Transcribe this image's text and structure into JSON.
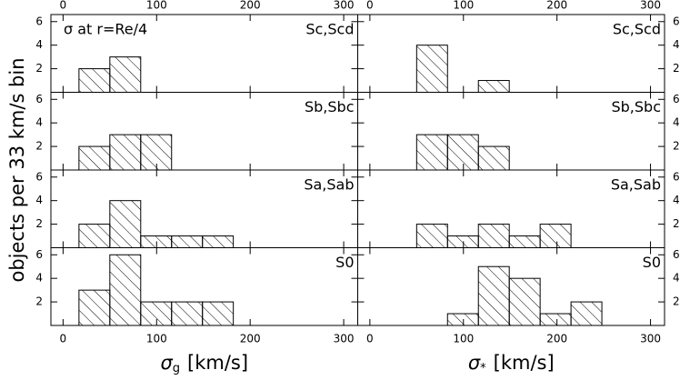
{
  "chart_data": [
    {
      "type": "histogram",
      "annotation": "Sc,Scd",
      "note": "σ at r=Re/4",
      "ylabel": "objects per 33 km/s bin",
      "bins": [
        17,
        50,
        83
      ],
      "values": [
        2,
        3
      ],
      "xlim": [
        -13,
        315
      ],
      "ylim": [
        0,
        6.6
      ],
      "xticks": [
        0,
        100,
        200,
        300
      ],
      "yticks": [
        2,
        4,
        6
      ]
    },
    {
      "type": "histogram",
      "annotation": "Sc,Scd",
      "bins": [
        50,
        83,
        116,
        149
      ],
      "values": [
        4,
        0,
        1
      ],
      "xlim": [
        -13,
        315
      ],
      "ylim": [
        0,
        6.6
      ],
      "xticks": [
        0,
        100,
        200,
        300
      ],
      "yticks": [
        2,
        4,
        6
      ]
    },
    {
      "type": "histogram",
      "annotation": "Sb,Sbc",
      "bins": [
        17,
        50,
        83,
        116
      ],
      "values": [
        2,
        3,
        3
      ],
      "xlim": [
        -13,
        315
      ],
      "ylim": [
        0,
        6.6
      ],
      "xticks": [
        0,
        100,
        200,
        300
      ],
      "yticks": [
        2,
        4,
        6
      ]
    },
    {
      "type": "histogram",
      "annotation": "Sb,Sbc",
      "bins": [
        50,
        83,
        116,
        149
      ],
      "values": [
        3,
        3,
        2
      ],
      "xlim": [
        -13,
        315
      ],
      "ylim": [
        0,
        6.6
      ],
      "xticks": [
        0,
        100,
        200,
        300
      ],
      "yticks": [
        2,
        4,
        6
      ]
    },
    {
      "type": "histogram",
      "annotation": "Sa,Sab",
      "bins": [
        17,
        50,
        83,
        116,
        149,
        182
      ],
      "values": [
        2,
        4,
        1,
        1,
        1
      ],
      "xlim": [
        -13,
        315
      ],
      "ylim": [
        0,
        6.6
      ],
      "xticks": [
        0,
        100,
        200,
        300
      ],
      "yticks": [
        2,
        4,
        6
      ]
    },
    {
      "type": "histogram",
      "annotation": "Sa,Sab",
      "bins": [
        50,
        83,
        116,
        149,
        182,
        215
      ],
      "values": [
        2,
        1,
        2,
        1,
        2
      ],
      "xlim": [
        -13,
        315
      ],
      "ylim": [
        0,
        6.6
      ],
      "xticks": [
        0,
        100,
        200,
        300
      ],
      "yticks": [
        2,
        4,
        6
      ]
    },
    {
      "type": "histogram",
      "annotation": "S0",
      "xlabel_symbol": "σ",
      "xlabel_subscript": "g",
      "xlabel_unit": "[km/s]",
      "bins": [
        17,
        50,
        83,
        116,
        149,
        182
      ],
      "values": [
        3,
        6,
        2,
        2,
        2
      ],
      "xlim": [
        -13,
        315
      ],
      "ylim": [
        0,
        6.6
      ],
      "xticks": [
        0,
        100,
        200,
        300
      ],
      "yticks": [
        2,
        4,
        6
      ]
    },
    {
      "type": "histogram",
      "annotation": "S0",
      "xlabel_symbol": "σ",
      "xlabel_subscript": "*",
      "xlabel_unit": "[km/s]",
      "bins": [
        83,
        116,
        149,
        182,
        215,
        248
      ],
      "values": [
        1,
        5,
        4,
        1,
        2
      ],
      "xlim": [
        -13,
        315
      ],
      "ylim": [
        0,
        6.6
      ],
      "xticks": [
        0,
        100,
        200,
        300
      ],
      "yticks": [
        2,
        4,
        6
      ]
    }
  ]
}
